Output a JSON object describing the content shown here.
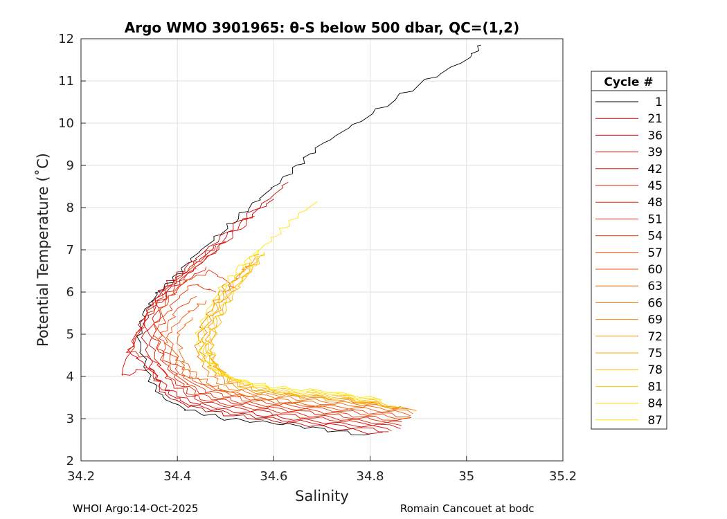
{
  "chart_data": {
    "type": "line",
    "title": "Argo WMO 3901965: θ-S below 500 dbar,  QC=(1,2)",
    "xlabel": "Salinity",
    "ylabel": "Potential Temperature (˚C)",
    "xlim": [
      34.2,
      35.2
    ],
    "ylim": [
      2,
      12
    ],
    "xticks": [
      "34.2",
      "34.4",
      "34.6",
      "34.8",
      "35",
      "35.2"
    ],
    "yticks": [
      "2",
      "3",
      "4",
      "5",
      "6",
      "7",
      "8",
      "9",
      "10",
      "11",
      "12"
    ],
    "grid": true,
    "legend": {
      "title": "Cycle #",
      "placement": "right-outside",
      "entries": [
        "1",
        "21",
        "36",
        "39",
        "42",
        "45",
        "48",
        "51",
        "54",
        "57",
        "60",
        "63",
        "66",
        "69",
        "72",
        "75",
        "78",
        "81",
        "84",
        "87"
      ],
      "colors": [
        "#000000",
        "#c00000",
        "#d00000",
        "#d80800",
        "#e01000",
        "#e41a00",
        "#e82400",
        "#ea2e00",
        "#ec3a00",
        "#ee4600",
        "#f05400",
        "#f26400",
        "#f47400",
        "#f68600",
        "#f89800",
        "#faaa00",
        "#fcbc00",
        "#fdcc00",
        "#fedc00",
        "#ffe600"
      ]
    },
    "series": [
      {
        "name": "1",
        "color": "#000000",
        "x": [
          34.8,
          34.7,
          34.6,
          34.5,
          34.42,
          34.37,
          34.34,
          34.32,
          34.33,
          34.36,
          34.4,
          34.44,
          34.5,
          34.55,
          34.6,
          34.65,
          34.7,
          34.8,
          34.9,
          35.0,
          35.03
        ],
        "y": [
          2.6,
          2.75,
          2.9,
          3.0,
          3.2,
          3.5,
          4.0,
          4.8,
          5.5,
          6.0,
          6.4,
          6.9,
          7.5,
          8.0,
          8.5,
          9.0,
          9.5,
          10.2,
          10.9,
          11.5,
          11.85
        ]
      },
      {
        "name": "21",
        "color": "#c00000",
        "x": [
          34.82,
          34.7,
          34.6,
          34.5,
          34.42,
          34.37,
          34.35,
          34.33,
          34.34,
          34.37,
          34.41,
          34.46,
          34.52,
          34.58,
          34.63
        ],
        "y": [
          2.65,
          2.8,
          2.95,
          3.1,
          3.3,
          3.6,
          4.1,
          4.9,
          5.6,
          6.1,
          6.5,
          7.0,
          7.6,
          8.1,
          8.6
        ]
      },
      {
        "name": "36",
        "color": "#d00000",
        "x": [
          34.84,
          34.72,
          34.6,
          34.5,
          34.42,
          34.37,
          34.34,
          34.3,
          34.33,
          34.37,
          34.42,
          34.48,
          34.54,
          34.6
        ],
        "y": [
          2.7,
          2.85,
          3.0,
          3.15,
          3.35,
          3.7,
          4.2,
          4.6,
          5.4,
          6.0,
          6.5,
          7.1,
          7.7,
          8.2
        ]
      },
      {
        "name": "39",
        "color": "#d80800",
        "x": [
          34.85,
          34.72,
          34.6,
          34.5,
          34.43,
          34.38,
          34.34,
          34.28,
          34.33,
          34.38,
          34.44,
          34.5,
          34.56
        ],
        "y": [
          2.75,
          2.9,
          3.05,
          3.2,
          3.4,
          3.7,
          4.2,
          4.0,
          5.3,
          6.0,
          6.6,
          7.2,
          7.8
        ]
      },
      {
        "name": "42",
        "color": "#e01000",
        "x": [
          34.86,
          34.74,
          34.62,
          34.52,
          34.44,
          34.39,
          34.36,
          34.34,
          34.36,
          34.4,
          34.45,
          34.5
        ],
        "y": [
          2.8,
          2.95,
          3.1,
          3.25,
          3.45,
          3.8,
          4.3,
          5.0,
          5.7,
          6.2,
          6.7,
          7.2
        ]
      },
      {
        "name": "45",
        "color": "#e41a00",
        "x": [
          34.86,
          34.74,
          34.62,
          34.52,
          34.44,
          34.39,
          34.35,
          34.3,
          34.34,
          34.38,
          34.43,
          34.48
        ],
        "y": [
          2.85,
          3.0,
          3.15,
          3.3,
          3.5,
          3.9,
          4.4,
          4.6,
          5.5,
          6.1,
          6.6,
          7.1
        ]
      },
      {
        "name": "48",
        "color": "#e82400",
        "x": [
          34.87,
          34.75,
          34.63,
          34.53,
          34.45,
          34.4,
          34.37,
          34.35,
          34.37,
          34.41,
          34.46
        ],
        "y": [
          2.9,
          3.05,
          3.2,
          3.35,
          3.55,
          3.9,
          4.4,
          5.0,
          5.7,
          6.2,
          6.6
        ]
      },
      {
        "name": "51",
        "color": "#ea2e00",
        "x": [
          34.87,
          34.75,
          34.63,
          34.53,
          34.45,
          34.4,
          34.37,
          34.35,
          34.38,
          34.42,
          34.47,
          34.52
        ],
        "y": [
          2.95,
          3.1,
          3.25,
          3.4,
          3.6,
          4.0,
          4.5,
          5.1,
          5.8,
          6.3,
          6.5,
          6.1
        ]
      },
      {
        "name": "54",
        "color": "#ec3a00",
        "x": [
          34.88,
          34.76,
          34.64,
          34.54,
          34.46,
          34.41,
          34.38,
          34.36,
          34.39,
          34.43,
          34.48
        ],
        "y": [
          3.0,
          3.15,
          3.3,
          3.45,
          3.65,
          4.0,
          4.5,
          5.1,
          5.7,
          6.2,
          6.0
        ]
      },
      {
        "name": "57",
        "color": "#ee4600",
        "x": [
          34.88,
          34.76,
          34.64,
          34.54,
          34.47,
          34.42,
          34.39,
          34.37,
          34.4,
          34.44
        ],
        "y": [
          3.05,
          3.2,
          3.35,
          3.5,
          3.7,
          4.0,
          4.5,
          5.0,
          5.6,
          5.9
        ]
      },
      {
        "name": "60",
        "color": "#f05400",
        "x": [
          34.89,
          34.77,
          34.65,
          34.55,
          34.48,
          34.43,
          34.4,
          34.38,
          34.42,
          34.46
        ],
        "y": [
          3.1,
          3.25,
          3.35,
          3.5,
          3.7,
          4.0,
          4.4,
          5.0,
          5.5,
          5.8
        ]
      },
      {
        "name": "63",
        "color": "#f26400",
        "x": [
          34.89,
          34.78,
          34.66,
          34.56,
          34.49,
          34.44,
          34.41,
          34.4,
          34.43
        ],
        "y": [
          3.15,
          3.3,
          3.4,
          3.5,
          3.7,
          4.0,
          4.4,
          5.0,
          5.4
        ]
      },
      {
        "name": "66",
        "color": "#f47400",
        "x": [
          34.89,
          34.78,
          34.66,
          34.57,
          34.5,
          34.46,
          34.44,
          34.45,
          34.48,
          34.5
        ],
        "y": [
          3.2,
          3.35,
          3.45,
          3.55,
          3.75,
          4.1,
          4.6,
          5.2,
          5.8,
          6.2
        ]
      },
      {
        "name": "69",
        "color": "#f68600",
        "x": [
          34.88,
          34.77,
          34.66,
          34.57,
          34.51,
          34.47,
          34.45,
          34.46,
          34.49,
          34.52,
          34.55
        ],
        "y": [
          3.2,
          3.4,
          3.5,
          3.6,
          3.8,
          4.15,
          4.6,
          5.2,
          5.8,
          6.3,
          6.7
        ]
      },
      {
        "name": "72",
        "color": "#f89800",
        "x": [
          34.87,
          34.76,
          34.65,
          34.57,
          34.51,
          34.48,
          34.46,
          34.47,
          34.5,
          34.53,
          34.56
        ],
        "y": [
          3.25,
          3.45,
          3.55,
          3.65,
          3.85,
          4.2,
          4.7,
          5.3,
          5.9,
          6.4,
          6.8
        ]
      },
      {
        "name": "75",
        "color": "#faaa00",
        "x": [
          34.86,
          34.75,
          34.64,
          34.56,
          34.51,
          34.48,
          34.47,
          34.48,
          34.51,
          34.54,
          34.57
        ],
        "y": [
          3.25,
          3.45,
          3.55,
          3.7,
          3.9,
          4.25,
          4.7,
          5.3,
          5.9,
          6.4,
          6.9
        ]
      },
      {
        "name": "78",
        "color": "#fcbc00",
        "x": [
          34.85,
          34.74,
          34.63,
          34.56,
          34.51,
          34.48,
          34.47,
          34.49,
          34.52,
          34.55,
          34.58
        ],
        "y": [
          3.3,
          3.5,
          3.6,
          3.75,
          3.95,
          4.3,
          4.8,
          5.4,
          6.0,
          6.5,
          6.9
        ]
      },
      {
        "name": "81",
        "color": "#fdcc00",
        "x": [
          34.84,
          34.73,
          34.62,
          34.55,
          34.5,
          34.47,
          34.46,
          34.48,
          34.51,
          34.55,
          34.58
        ],
        "y": [
          3.35,
          3.55,
          3.65,
          3.8,
          4.0,
          4.35,
          4.8,
          5.4,
          6.0,
          6.5,
          6.95
        ]
      },
      {
        "name": "84",
        "color": "#fedc00",
        "x": [
          34.83,
          34.72,
          34.61,
          34.54,
          34.49,
          34.46,
          34.45,
          34.47,
          34.5,
          34.54,
          34.57
        ],
        "y": [
          3.4,
          3.6,
          3.7,
          3.85,
          4.05,
          4.4,
          4.9,
          5.5,
          6.1,
          6.6,
          7.0
        ]
      },
      {
        "name": "87",
        "color": "#ffe600",
        "x": [
          34.82,
          34.71,
          34.6,
          34.53,
          34.48,
          34.45,
          34.44,
          34.46,
          34.49,
          34.53,
          34.57,
          34.61,
          34.65,
          34.69
        ],
        "y": [
          3.45,
          3.65,
          3.75,
          3.9,
          4.1,
          4.45,
          4.9,
          5.5,
          6.1,
          6.6,
          7.0,
          7.4,
          7.8,
          8.15
        ]
      }
    ]
  },
  "footer": {
    "left": "WHOI Argo:14-Oct-2025",
    "right": "Romain Cancouet at bodc"
  }
}
